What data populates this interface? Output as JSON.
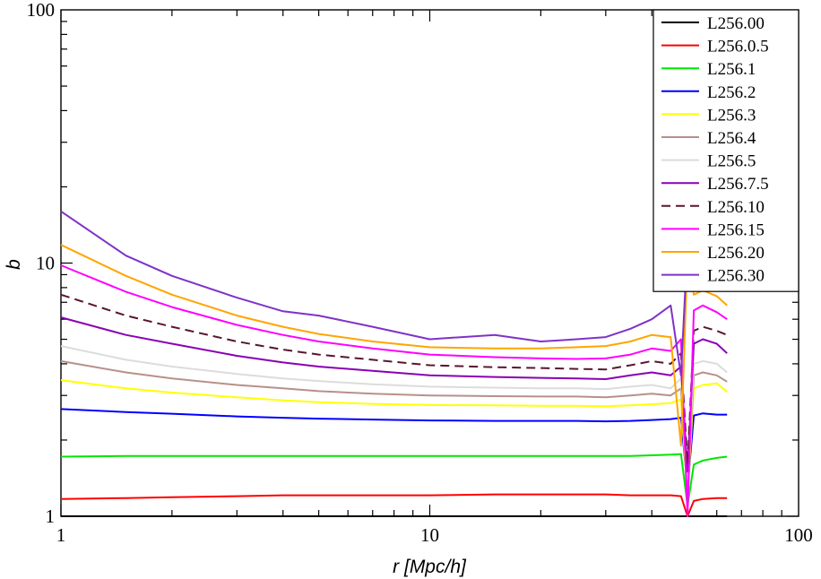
{
  "chart_data": {
    "type": "line",
    "xlabel": "r [Mpc/h]",
    "ylabel": "b",
    "xscale": "log",
    "yscale": "log",
    "xlim": [
      1,
      100
    ],
    "ylim": [
      1,
      100
    ],
    "xticks": [
      {
        "v": 1,
        "label": "1"
      },
      {
        "v": 10,
        "label": "10"
      },
      {
        "v": 100,
        "label": "100"
      }
    ],
    "yticks": [
      {
        "v": 1,
        "label": "1"
      },
      {
        "v": 10,
        "label": "10"
      },
      {
        "v": 100,
        "label": "100"
      }
    ],
    "grid": false,
    "legend_position": "top-right",
    "x": [
      1,
      1.5,
      2,
      3,
      4,
      5,
      7,
      10,
      15,
      20,
      25,
      30,
      35,
      40,
      45,
      48,
      50,
      52,
      55,
      60,
      64
    ],
    "series": [
      {
        "name": "L256.00",
        "color": "#000000",
        "dash": false,
        "values": [
          1.0,
          1.0,
          1.0,
          1.0,
          1.0,
          1.0,
          1.0,
          1.0,
          1.0,
          1.0,
          1.0,
          1.0,
          1.0,
          1.0,
          1.0,
          1.0,
          1.0,
          1.0,
          1.0,
          1.0,
          1.0
        ]
      },
      {
        "name": "L256.0.5",
        "color": "#ff0000",
        "dash": false,
        "values": [
          1.17,
          1.18,
          1.19,
          1.2,
          1.21,
          1.21,
          1.21,
          1.21,
          1.22,
          1.22,
          1.22,
          1.22,
          1.21,
          1.21,
          1.21,
          1.2,
          0.85,
          1.15,
          1.17,
          1.18,
          1.18
        ]
      },
      {
        "name": "L256.1",
        "color": "#00e600",
        "dash": false,
        "values": [
          1.72,
          1.73,
          1.73,
          1.73,
          1.73,
          1.73,
          1.73,
          1.73,
          1.73,
          1.73,
          1.73,
          1.73,
          1.73,
          1.74,
          1.75,
          1.76,
          1.1,
          1.6,
          1.66,
          1.7,
          1.72
        ]
      },
      {
        "name": "L256.2",
        "color": "#0000ff",
        "dash": false,
        "values": [
          2.65,
          2.58,
          2.54,
          2.48,
          2.45,
          2.43,
          2.41,
          2.39,
          2.38,
          2.38,
          2.38,
          2.37,
          2.38,
          2.4,
          2.42,
          2.45,
          1.3,
          2.5,
          2.55,
          2.52,
          2.52
        ]
      },
      {
        "name": "L256.3",
        "color": "#ffff00",
        "dash": false,
        "values": [
          3.45,
          3.2,
          3.08,
          2.95,
          2.87,
          2.82,
          2.78,
          2.75,
          2.74,
          2.73,
          2.73,
          2.72,
          2.74,
          2.77,
          2.8,
          2.9,
          1.2,
          3.2,
          3.3,
          3.35,
          3.1
        ]
      },
      {
        "name": "L256.4",
        "color": "#b8908a",
        "dash": false,
        "values": [
          4.1,
          3.7,
          3.5,
          3.3,
          3.2,
          3.12,
          3.05,
          3.0,
          2.98,
          2.97,
          2.97,
          2.95,
          3.0,
          3.05,
          3.0,
          3.2,
          1.3,
          3.6,
          3.7,
          3.6,
          3.4
        ]
      },
      {
        "name": "L256.5",
        "color": "#dcdcdc",
        "dash": false,
        "values": [
          4.7,
          4.15,
          3.9,
          3.65,
          3.5,
          3.42,
          3.32,
          3.25,
          3.22,
          3.2,
          3.2,
          3.18,
          3.25,
          3.3,
          3.2,
          3.5,
          1.4,
          4.0,
          4.1,
          4.0,
          3.7
        ]
      },
      {
        "name": "L256.7.5",
        "color": "#8b00b4",
        "dash": false,
        "values": [
          6.1,
          5.2,
          4.8,
          4.3,
          4.05,
          3.9,
          3.75,
          3.6,
          3.55,
          3.52,
          3.5,
          3.48,
          3.6,
          3.7,
          3.6,
          3.9,
          1.5,
          4.8,
          5.0,
          4.8,
          4.4
        ]
      },
      {
        "name": "L256.10",
        "color": "#5a1530",
        "dash": true,
        "values": [
          7.5,
          6.2,
          5.6,
          4.9,
          4.55,
          4.35,
          4.15,
          3.95,
          3.88,
          3.85,
          3.82,
          3.8,
          3.95,
          4.1,
          4.0,
          4.4,
          1.6,
          5.4,
          5.6,
          5.4,
          5.2
        ]
      },
      {
        "name": "L256.15",
        "color": "#ff00ff",
        "dash": false,
        "values": [
          9.8,
          7.7,
          6.7,
          5.7,
          5.2,
          4.9,
          4.6,
          4.35,
          4.25,
          4.2,
          4.18,
          4.2,
          4.35,
          4.6,
          4.5,
          5.0,
          0.9,
          6.5,
          6.8,
          6.4,
          6.0
        ]
      },
      {
        "name": "L256.20",
        "color": "#ffa500",
        "dash": false,
        "values": [
          11.8,
          8.9,
          7.5,
          6.2,
          5.6,
          5.25,
          4.9,
          4.65,
          4.6,
          4.6,
          4.65,
          4.7,
          4.9,
          5.2,
          5.1,
          1.9,
          11.0,
          7.5,
          7.8,
          7.4,
          6.8
        ]
      },
      {
        "name": "L256.30",
        "color": "#7f32c8",
        "dash": false,
        "values": [
          16.0,
          10.7,
          8.9,
          7.3,
          6.45,
          6.2,
          5.6,
          5.0,
          5.2,
          4.9,
          5.0,
          5.1,
          5.5,
          6.0,
          6.8,
          3.6,
          12.0,
          8.5,
          9.0,
          8.5,
          8.4
        ]
      }
    ]
  }
}
